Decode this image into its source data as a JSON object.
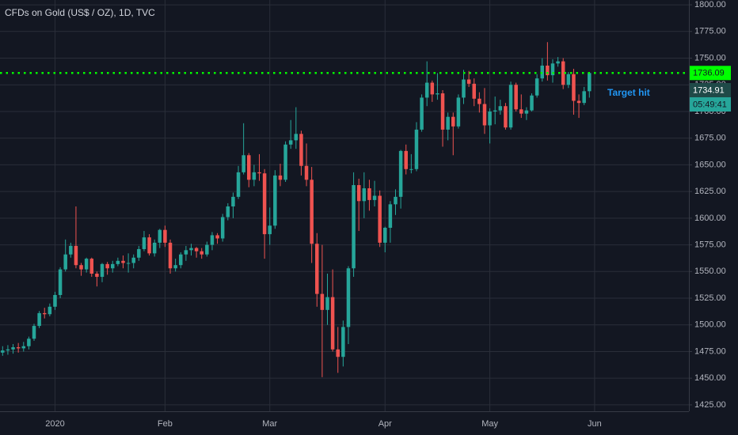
{
  "chart_data": {
    "type": "candlestick",
    "title": "CFDs on Gold (US$ / OZ), 1D, TVC",
    "annotation": "Target hit",
    "up_color": "#26a69a",
    "down_color": "#ef5350",
    "grid": true,
    "xlim": [
      -0.5,
      131
    ],
    "ylim": [
      1419,
      1804.5
    ],
    "xticks": [
      {
        "value": 10,
        "label": "2020"
      },
      {
        "value": 31,
        "label": "Feb"
      },
      {
        "value": 51,
        "label": "Mar"
      },
      {
        "value": 73,
        "label": "Apr"
      },
      {
        "value": 93,
        "label": "May"
      },
      {
        "value": 113,
        "label": "Jun"
      }
    ],
    "yticks": [
      {
        "value": 1425,
        "label": "1425.00"
      },
      {
        "value": 1450,
        "label": "1450.00"
      },
      {
        "value": 1475,
        "label": "1475.00"
      },
      {
        "value": 1500,
        "label": "1500.00"
      },
      {
        "value": 1525,
        "label": "1525.00"
      },
      {
        "value": 1550,
        "label": "1550.00"
      },
      {
        "value": 1575,
        "label": "1575.00"
      },
      {
        "value": 1600,
        "label": "1600.00"
      },
      {
        "value": 1625,
        "label": "1625.00"
      },
      {
        "value": 1650,
        "label": "1650.00"
      },
      {
        "value": 1675,
        "label": "1675.00"
      },
      {
        "value": 1700,
        "label": "1700.00"
      },
      {
        "value": 1725,
        "label": "1725.00"
      },
      {
        "value": 1750,
        "label": "1750.00"
      },
      {
        "value": 1775,
        "label": "1775.00"
      },
      {
        "value": 1800,
        "label": "1800.00"
      }
    ],
    "price_line": 1736.09,
    "price_line_color": "#00ff00",
    "last_price": 1734.91,
    "countdown": "05:49:41",
    "open": [
      1474,
      1476,
      1477,
      1479,
      1478,
      1480,
      1487,
      1499,
      1511,
      1510,
      1517,
      1528,
      1552,
      1566,
      1574,
      1556,
      1552,
      1562,
      1548,
      1545,
      1557,
      1553,
      1557,
      1560,
      1558,
      1558,
      1563,
      1571,
      1582,
      1567,
      1577,
      1589,
      1577,
      1553,
      1556,
      1566,
      1570,
      1572,
      1569,
      1566,
      1575,
      1584,
      1581,
      1601,
      1611,
      1620,
      1643,
      1659,
      1636,
      1643,
      1642,
      1585,
      1593,
      1640,
      1636,
      1669,
      1673,
      1679,
      1649,
      1636,
      1576,
      1529,
      1514,
      1526,
      1477,
      1470,
      1498,
      1553,
      1631,
      1616,
      1628,
      1617,
      1621,
      1577,
      1591,
      1613,
      1620,
      1663,
      1646,
      1646,
      1683,
      1713,
      1727,
      1716,
      1717,
      1683,
      1695,
      1686,
      1713,
      1730,
      1726,
      1712,
      1707,
      1687,
      1700,
      1701,
      1705,
      1685,
      1725,
      1702,
      1698,
      1701,
      1715,
      1731,
      1743,
      1734,
      1745,
      1747,
      1725,
      1735,
      1710,
      1708,
      1719
    ],
    "high": [
      1480,
      1481,
      1482,
      1483,
      1484,
      1489,
      1501,
      1513,
      1516,
      1520,
      1531,
      1554,
      1580,
      1577,
      1611,
      1558,
      1563,
      1563,
      1550,
      1558,
      1559,
      1560,
      1563,
      1565,
      1567,
      1566,
      1574,
      1588,
      1585,
      1580,
      1590,
      1593,
      1580,
      1562,
      1568,
      1574,
      1576,
      1573,
      1572,
      1578,
      1587,
      1586,
      1604,
      1614,
      1624,
      1649,
      1689,
      1661,
      1650,
      1660,
      1646,
      1610,
      1645,
      1651,
      1672,
      1692,
      1704,
      1682,
      1670,
      1648,
      1586,
      1575,
      1548,
      1552,
      1498,
      1504,
      1555,
      1643,
      1637,
      1643,
      1636,
      1635,
      1626,
      1592,
      1616,
      1627,
      1664,
      1669,
      1660,
      1690,
      1716,
      1747,
      1729,
      1736,
      1720,
      1699,
      1699,
      1716,
      1739,
      1738,
      1731,
      1718,
      1722,
      1703,
      1714,
      1711,
      1708,
      1728,
      1727,
      1716,
      1704,
      1717,
      1735,
      1750,
      1765,
      1749,
      1751,
      1750,
      1737,
      1740,
      1716,
      1723,
      1737
    ],
    "low": [
      1471,
      1472,
      1473,
      1474,
      1475,
      1477,
      1485,
      1497,
      1506,
      1508,
      1514,
      1525,
      1550,
      1563,
      1553,
      1546,
      1549,
      1545,
      1536,
      1540,
      1547,
      1549,
      1555,
      1553,
      1549,
      1553,
      1560,
      1569,
      1565,
      1564,
      1572,
      1573,
      1548,
      1550,
      1553,
      1560,
      1565,
      1563,
      1562,
      1564,
      1570,
      1576,
      1578,
      1598,
      1600,
      1618,
      1641,
      1629,
      1630,
      1635,
      1562,
      1575,
      1590,
      1630,
      1634,
      1665,
      1665,
      1640,
      1630,
      1558,
      1517,
      1451,
      1500,
      1475,
      1455,
      1461,
      1482,
      1545,
      1588,
      1600,
      1607,
      1611,
      1573,
      1568,
      1577,
      1603,
      1609,
      1641,
      1642,
      1644,
      1681,
      1705,
      1709,
      1711,
      1667,
      1673,
      1659,
      1684,
      1707,
      1723,
      1705,
      1699,
      1679,
      1670,
      1688,
      1697,
      1683,
      1683,
      1700,
      1694,
      1692,
      1700,
      1713,
      1728,
      1729,
      1727,
      1742,
      1721,
      1722,
      1697,
      1694,
      1706,
      1713
    ],
    "close": [
      1476,
      1477,
      1479,
      1478,
      1480,
      1487,
      1499,
      1511,
      1510,
      1517,
      1528,
      1552,
      1566,
      1574,
      1556,
      1552,
      1562,
      1548,
      1545,
      1557,
      1553,
      1557,
      1560,
      1558,
      1558,
      1563,
      1571,
      1582,
      1567,
      1577,
      1589,
      1577,
      1553,
      1556,
      1566,
      1570,
      1572,
      1569,
      1566,
      1575,
      1584,
      1581,
      1601,
      1611,
      1620,
      1643,
      1659,
      1636,
      1643,
      1642,
      1585,
      1593,
      1640,
      1636,
      1669,
      1673,
      1679,
      1649,
      1636,
      1576,
      1529,
      1514,
      1526,
      1477,
      1470,
      1498,
      1553,
      1631,
      1616,
      1628,
      1617,
      1621,
      1577,
      1591,
      1613,
      1620,
      1663,
      1646,
      1646,
      1683,
      1713,
      1727,
      1716,
      1717,
      1683,
      1695,
      1686,
      1713,
      1730,
      1726,
      1712,
      1707,
      1687,
      1700,
      1701,
      1705,
      1685,
      1725,
      1702,
      1698,
      1701,
      1715,
      1731,
      1743,
      1734,
      1745,
      1747,
      1725,
      1735,
      1710,
      1708,
      1719,
      1736.09
    ]
  }
}
